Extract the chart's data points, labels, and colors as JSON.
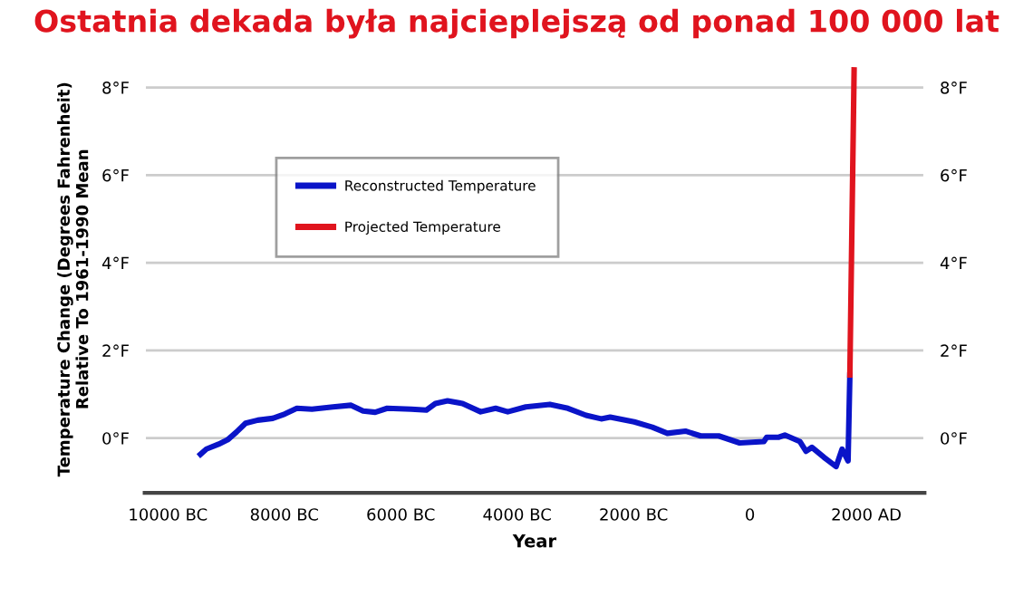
{
  "chart_data": {
    "type": "line",
    "title": "Ostatnia dekada była najcieplejszą od ponad 100 000 lat",
    "xlabel": "Year",
    "ylabel": "Temperature Change (Degrees Fahrenheit)\nRelative To 1961-1990 Mean",
    "series": [
      {
        "name": "Reconstructed Temperature",
        "color": "#0a14c8",
        "x": [
          -9441,
          -9338,
          -9130,
          -8975,
          -8820,
          -8665,
          -8457,
          -8199,
          -7991,
          -7784,
          -7525,
          -7164,
          -6853,
          -6646,
          -6438,
          -6232,
          -5817,
          -5559,
          -5404,
          -5196,
          -4938,
          -4627,
          -4369,
          -4161,
          -3851,
          -3437,
          -3127,
          -2816,
          -2556,
          -2401,
          -1988,
          -1677,
          -1419,
          -1108,
          -848,
          -537,
          -177,
          239,
          289,
          497,
          599,
          860,
          963,
          1065,
          1273,
          1481,
          1584,
          1686,
          1717
        ],
        "values": [
          -0.37,
          -0.25,
          -0.14,
          -0.04,
          0.14,
          0.34,
          0.41,
          0.45,
          0.55,
          0.68,
          0.66,
          0.71,
          0.75,
          0.62,
          0.59,
          0.68,
          0.66,
          0.64,
          0.79,
          0.85,
          0.79,
          0.6,
          0.68,
          0.6,
          0.71,
          0.77,
          0.68,
          0.52,
          0.44,
          0.48,
          0.37,
          0.25,
          0.11,
          0.16,
          0.05,
          0.05,
          -0.11,
          -0.08,
          0.02,
          0.02,
          0.07,
          -0.08,
          -0.3,
          -0.21,
          -0.44,
          -0.65,
          -0.25,
          -0.52,
          1.44
        ]
      },
      {
        "name": "Projected Temperature",
        "color": "#e0141e",
        "x": [
          1717,
          1790
        ],
        "values": [
          1.44,
          8.4
        ]
      }
    ],
    "xlim": [
      -10400,
      3000
    ],
    "xticks": [
      {
        "value": -10000,
        "label": "10000 BC"
      },
      {
        "value": -8000,
        "label": "8000 BC"
      },
      {
        "value": -6000,
        "label": "6000 BC"
      },
      {
        "value": -4000,
        "label": "4000 BC"
      },
      {
        "value": -2000,
        "label": "2000 BC"
      },
      0,
      {
        "value": 2000,
        "label": "2000 AD"
      }
    ],
    "ylim": [
      -1.25,
      8.5
    ],
    "yticks": [
      {
        "value": 0,
        "label": "0°F"
      },
      {
        "value": 2,
        "label": "2°F"
      },
      {
        "value": 4,
        "label": "4°F"
      },
      {
        "value": 6,
        "label": "6°F"
      },
      {
        "value": 8,
        "label": "8°F"
      }
    ],
    "y2lim": [
      -1.25,
      8.5
    ],
    "y2ticks": [
      {
        "value": 0,
        "label": "0°F"
      },
      {
        "value": 2,
        "label": "2°F"
      },
      {
        "value": 4,
        "label": "4°F"
      },
      {
        "value": 6,
        "label": "6°F"
      },
      {
        "value": 8,
        "label": "8°F"
      }
    ],
    "grid": "y",
    "legend": "top left",
    "marker": "none",
    "line_style": "solid"
  }
}
